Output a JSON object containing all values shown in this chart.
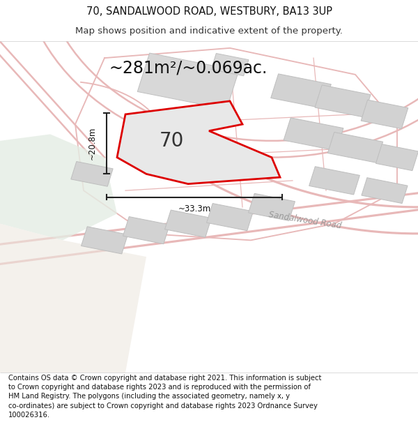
{
  "title_line1": "70, SANDALWOOD ROAD, WESTBURY, BA13 3UP",
  "title_line2": "Map shows position and indicative extent of the property.",
  "area_label": "~281m²/~0.069ac.",
  "property_number": "70",
  "dim_height": "~20.8m",
  "dim_width": "~33.3m",
  "road_label": "Sandalwood Road",
  "footer_text": "Contains OS data © Crown copyright and database right 2021. This information is subject to Crown copyright and database rights 2023 and is reproduced with the permission of HM Land Registry. The polygons (including the associated geometry, namely x, y co-ordinates) are subject to Crown copyright and database rights 2023 Ordnance Survey 100026316.",
  "map_bg": "#f5f0ee",
  "property_fill": "#e8e8e8",
  "property_outline": "#dd0000",
  "dim_line_color": "#222222",
  "title_fontsize": 10.5,
  "subtitle_fontsize": 9.5,
  "area_fontsize": 17,
  "number_fontsize": 20,
  "footer_fontsize": 7.2,
  "road_outline_color": "#e8b8b8",
  "road_fill_color": "#f0e0e0",
  "building_fill": "#d8d8d8",
  "building_edge": "#c0c0c0",
  "green_fill": "#e4ede4"
}
